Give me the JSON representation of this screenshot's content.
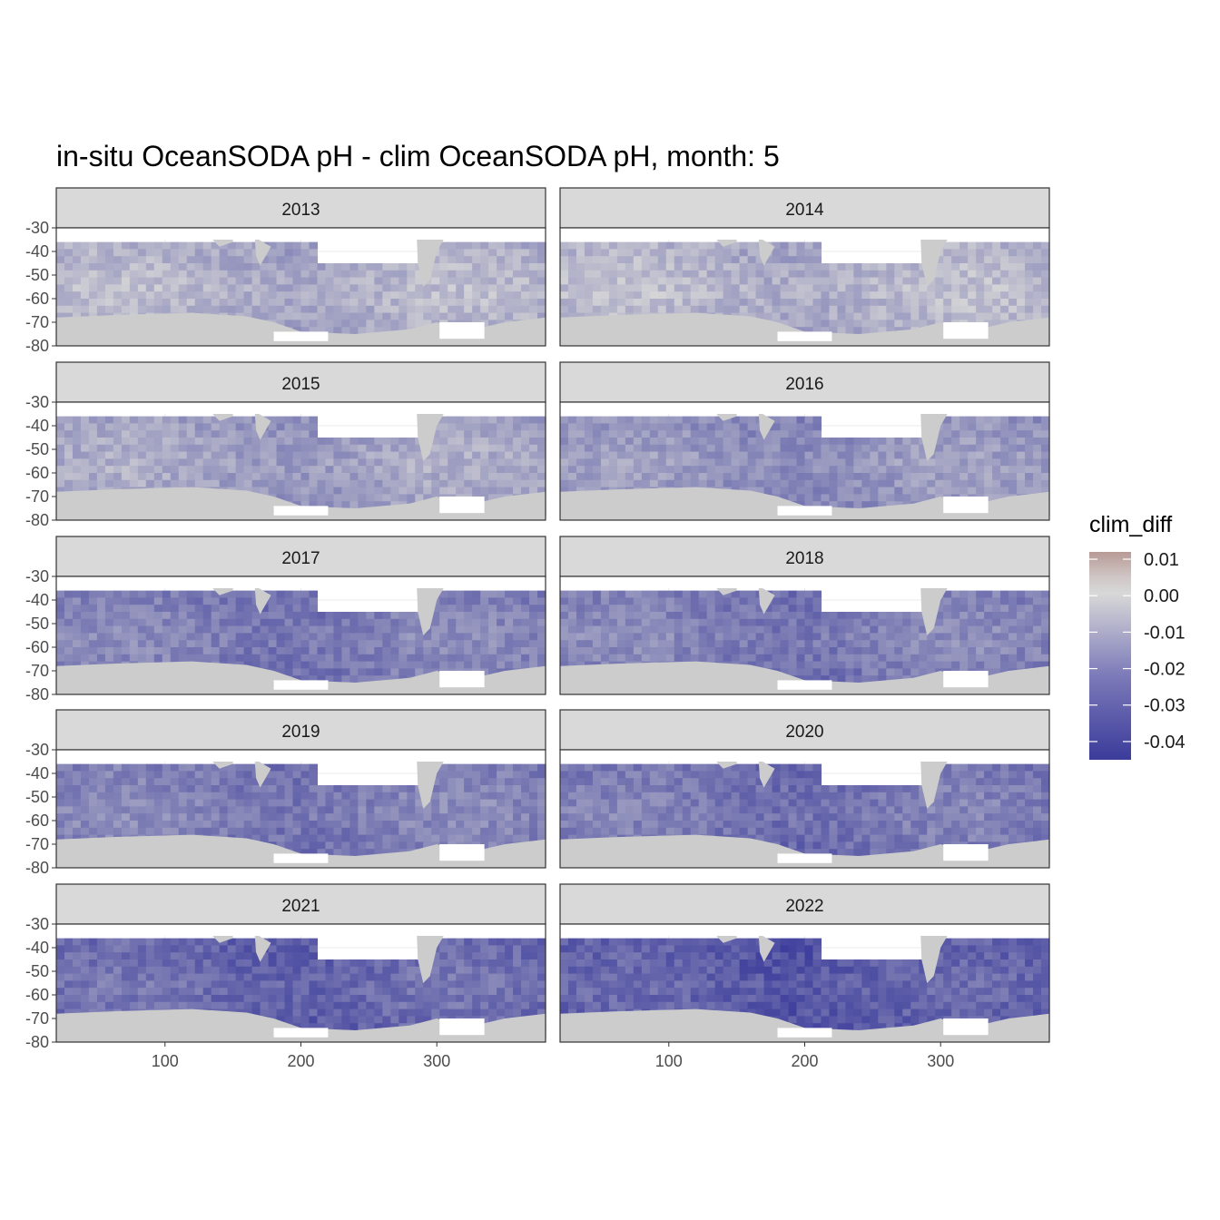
{
  "title": "in-situ OceanSODA pH - clim OceanSODA pH, month: 5",
  "chart_data": {
    "type": "heatmap",
    "title": "in-situ OceanSODA pH - clim OceanSODA pH, month: 5",
    "xlabel": "",
    "ylabel": "",
    "facet_variable": "year",
    "facets": [
      {
        "label": "2013",
        "mean_clim_diff": -0.01
      },
      {
        "label": "2014",
        "mean_clim_diff": -0.009
      },
      {
        "label": "2015",
        "mean_clim_diff": -0.014
      },
      {
        "label": "2016",
        "mean_clim_diff": -0.018
      },
      {
        "label": "2017",
        "mean_clim_diff": -0.024
      },
      {
        "label": "2018",
        "mean_clim_diff": -0.024
      },
      {
        "label": "2019",
        "mean_clim_diff": -0.024
      },
      {
        "label": "2020",
        "mean_clim_diff": -0.026
      },
      {
        "label": "2021",
        "mean_clim_diff": -0.03
      },
      {
        "label": "2022",
        "mean_clim_diff": -0.033
      }
    ],
    "xlim": [
      20,
      380
    ],
    "ylim": [
      -80,
      -30
    ],
    "x_ticks": [
      "100",
      "200",
      "300"
    ],
    "y_ticks": [
      "-30",
      "-40",
      "-50",
      "-60",
      "-70",
      "-80"
    ],
    "x_tick_values": [
      100,
      200,
      300
    ],
    "y_tick_values": [
      -30,
      -40,
      -50,
      -60,
      -70,
      -80
    ],
    "legend": {
      "title": "clim_diff",
      "range": [
        -0.045,
        0.012
      ],
      "ticks": [
        "0.01",
        "0.00",
        "-0.01",
        "-0.02",
        "-0.03",
        "-0.04"
      ],
      "tick_values": [
        0.01,
        0.0,
        -0.01,
        -0.02,
        -0.03,
        -0.04
      ],
      "colors": {
        "high": "#b89a96",
        "mid": "#d8d8d8",
        "low": "#3b3b9b"
      }
    },
    "land_color": "#cccccc",
    "strip_color": "#d9d9d9",
    "grid": true
  }
}
